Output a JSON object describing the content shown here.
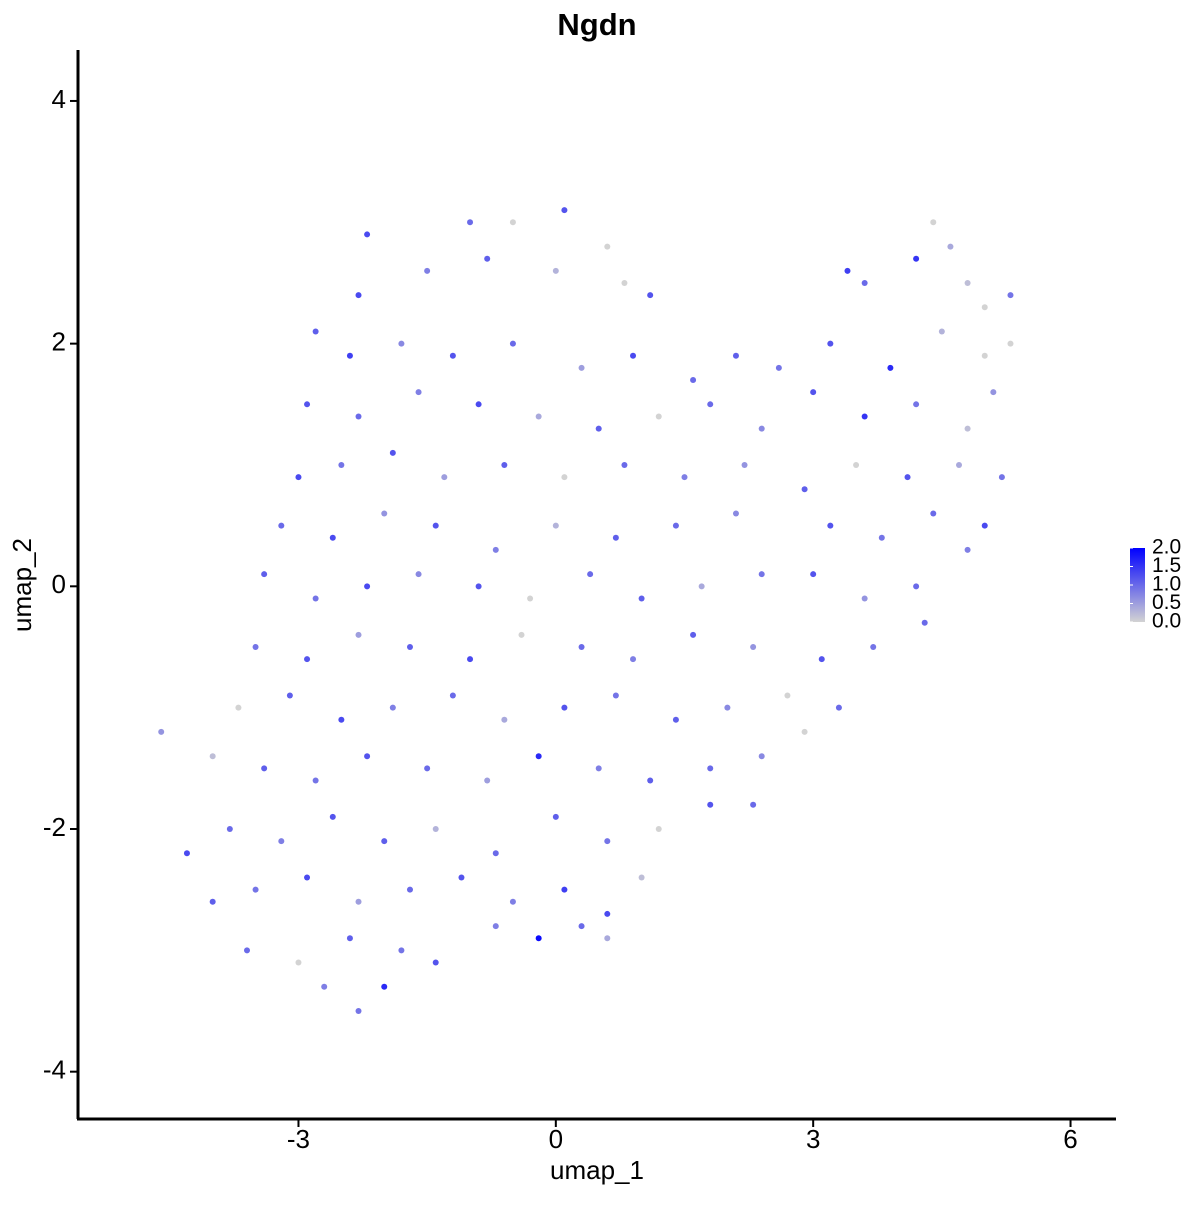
{
  "chart_data": {
    "type": "scatter",
    "title": "Ngdn",
    "x_label": "umap_1",
    "y_label": "umap_2",
    "x": [
      -1.0,
      -0.5,
      0.1,
      0.6,
      -2.2,
      4.4,
      4.6,
      -2.3,
      -1.5,
      -0.8,
      0.0,
      0.8,
      1.1,
      3.4,
      3.6,
      4.2,
      4.8,
      5.0,
      5.3,
      -2.8,
      -2.4,
      -1.8,
      -1.2,
      -0.5,
      0.3,
      0.9,
      2.1,
      2.6,
      3.2,
      3.9,
      4.5,
      5.0,
      5.3,
      1.6,
      -2.9,
      -2.3,
      -1.6,
      -0.9,
      -0.2,
      0.5,
      1.2,
      1.8,
      2.4,
      3.0,
      3.6,
      4.2,
      4.8,
      5.1,
      -3.0,
      -2.5,
      -1.9,
      -1.3,
      -0.6,
      0.1,
      0.8,
      1.5,
      2.2,
      2.9,
      3.5,
      4.1,
      4.7,
      5.2,
      -3.2,
      -2.6,
      -2.0,
      -1.4,
      -0.7,
      0.0,
      0.7,
      1.4,
      2.1,
      3.2,
      3.8,
      4.4,
      5.0,
      -3.4,
      -2.8,
      -2.2,
      -1.6,
      -0.9,
      -0.3,
      0.4,
      1.0,
      1.7,
      2.4,
      3.0,
      3.6,
      4.2,
      4.8,
      -3.5,
      -2.9,
      -2.3,
      -1.7,
      -1.0,
      -0.4,
      0.3,
      0.9,
      1.6,
      2.3,
      3.1,
      3.7,
      4.3,
      -3.7,
      -3.1,
      -2.5,
      -1.9,
      -1.2,
      -0.6,
      0.1,
      0.7,
      1.4,
      2.0,
      2.7,
      3.3,
      -4.6,
      -4.0,
      -3.4,
      -2.8,
      -2.2,
      -1.5,
      -0.8,
      -0.2,
      0.5,
      1.1,
      1.8,
      2.4,
      2.9,
      -4.3,
      -3.8,
      -3.2,
      -2.6,
      -2.0,
      -1.4,
      -0.7,
      0.0,
      0.6,
      1.2,
      1.8,
      2.3,
      -4.0,
      -3.5,
      -2.9,
      -2.3,
      -1.7,
      -1.1,
      -0.5,
      0.1,
      0.6,
      1.0,
      -3.6,
      -3.0,
      -2.4,
      -1.8,
      -1.4,
      -0.7,
      -0.2,
      0.3,
      0.6,
      -2.7,
      -2.3,
      -2.0
    ],
    "y": [
      3.0,
      3.0,
      3.1,
      2.8,
      2.9,
      3.0,
      2.8,
      2.4,
      2.6,
      2.7,
      2.6,
      2.5,
      2.4,
      2.6,
      2.5,
      2.7,
      2.5,
      2.3,
      2.4,
      2.1,
      1.9,
      2.0,
      1.9,
      2.0,
      1.8,
      1.9,
      1.9,
      1.8,
      2.0,
      1.8,
      2.1,
      1.9,
      2.0,
      1.7,
      1.5,
      1.4,
      1.6,
      1.5,
      1.4,
      1.3,
      1.4,
      1.5,
      1.3,
      1.6,
      1.4,
      1.5,
      1.3,
      1.6,
      0.9,
      1.0,
      1.1,
      0.9,
      1.0,
      0.9,
      1.0,
      0.9,
      1.0,
      0.8,
      1.0,
      0.9,
      1.0,
      0.9,
      0.5,
      0.4,
      0.6,
      0.5,
      0.3,
      0.5,
      0.4,
      0.5,
      0.6,
      0.5,
      0.4,
      0.6,
      0.5,
      0.1,
      -0.1,
      0.0,
      0.1,
      0.0,
      -0.1,
      0.1,
      -0.1,
      0.0,
      0.1,
      0.1,
      -0.1,
      0.0,
      0.3,
      -0.5,
      -0.6,
      -0.4,
      -0.5,
      -0.6,
      -0.4,
      -0.5,
      -0.6,
      -0.4,
      -0.5,
      -0.6,
      -0.5,
      -0.3,
      -1.0,
      -0.9,
      -1.1,
      -1.0,
      -0.9,
      -1.1,
      -1.0,
      -0.9,
      -1.1,
      -1.0,
      -0.9,
      -1.0,
      -1.2,
      -1.4,
      -1.5,
      -1.6,
      -1.4,
      -1.5,
      -1.6,
      -1.4,
      -1.5,
      -1.6,
      -1.5,
      -1.4,
      -1.2,
      -2.2,
      -2.0,
      -2.1,
      -1.9,
      -2.1,
      -2.0,
      -2.2,
      -1.9,
      -2.1,
      -2.0,
      -1.8,
      -1.8,
      -2.6,
      -2.5,
      -2.4,
      -2.6,
      -2.5,
      -2.4,
      -2.6,
      -2.5,
      -2.7,
      -2.4,
      -3.0,
      -3.1,
      -2.9,
      -3.0,
      -3.1,
      -2.8,
      -2.9,
      -2.8,
      -2.9,
      -3.3,
      -3.5,
      -3.3
    ],
    "expression": [
      1.0,
      0,
      1.2,
      0,
      1.3,
      0,
      0.4,
      1.3,
      0.8,
      1.1,
      0.3,
      0,
      1.2,
      1.4,
      1.0,
      1.5,
      0.2,
      0,
      0.9,
      1.1,
      1.4,
      0.7,
      1.2,
      1.0,
      0.5,
      1.3,
      1.1,
      0.9,
      1.2,
      1.6,
      0.3,
      0,
      0,
      1.0,
      1.2,
      1.0,
      0.8,
      1.3,
      0.4,
      1.1,
      0,
      1.0,
      0.7,
      1.2,
      1.5,
      0.9,
      0.2,
      0.6,
      1.3,
      0.9,
      1.2,
      0.5,
      1.1,
      0,
      1.0,
      0.8,
      0.6,
      1.1,
      0,
      1.2,
      0.4,
      0.9,
      1.0,
      1.3,
      0.6,
      1.2,
      0.8,
      0.3,
      1.1,
      1.0,
      0.7,
      1.2,
      0.9,
      1.0,
      1.3,
      1.1,
      0.9,
      1.3,
      0.7,
      1.2,
      0,
      1.0,
      1.1,
      0.4,
      0.9,
      1.2,
      0.6,
      1.0,
      0.8,
      0.9,
      1.2,
      0.5,
      1.1,
      1.3,
      0,
      1.0,
      0.8,
      1.1,
      0.6,
      1.2,
      0.9,
      1.0,
      0,
      1.1,
      1.3,
      0.8,
      1.0,
      0.4,
      1.2,
      0.9,
      1.1,
      0.7,
      0,
      1.0,
      0.6,
      0.2,
      1.1,
      0.9,
      1.2,
      1.0,
      0.5,
      1.6,
      0.8,
      1.1,
      1.0,
      0.7,
      0,
      1.3,
      1.0,
      0.8,
      1.2,
      1.1,
      0.3,
      1.0,
      1.1,
      0.9,
      0,
      1.2,
      1.0,
      1.1,
      0.9,
      1.3,
      0.5,
      1.0,
      1.2,
      0.8,
      1.4,
      1.3,
      0.2,
      1.0,
      0,
      1.1,
      0.9,
      1.2,
      0.8,
      1.9,
      1.0,
      0.4,
      0.8,
      0.9,
      1.6
    ],
    "xlim": [
      -5.57,
      6.53
    ],
    "ylim": [
      -4.39,
      4.42
    ],
    "xticks": [
      -3,
      0,
      3,
      6
    ],
    "yticks": [
      -4,
      -2,
      0,
      2,
      4
    ],
    "color_scale": {
      "low": "#d3d3d3",
      "high": "#0000ff",
      "lim": [
        0,
        2
      ],
      "ticks": [
        {
          "value": 0,
          "label": "0.0"
        },
        0.5,
        {
          "value": 1,
          "label": "1.0"
        },
        1.5,
        {
          "value": 2,
          "label": "2.0"
        }
      ]
    }
  }
}
